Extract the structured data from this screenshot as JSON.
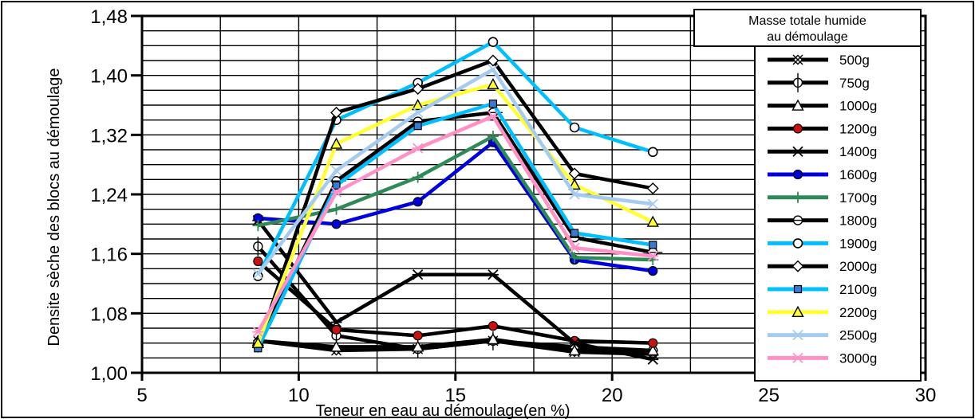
{
  "chart_data": {
    "type": "line",
    "xlabel": "Teneur en eau au démoulage(en %)",
    "ylabel": "Densite sèche des blocs au démoulage",
    "xlim": [
      5,
      30
    ],
    "ylim": [
      1.0,
      1.48
    ],
    "x_ticks": [
      5,
      10,
      15,
      20,
      25,
      30
    ],
    "y_ticks": [
      1.0,
      1.08,
      1.16,
      1.24,
      1.32,
      1.4,
      1.48
    ],
    "x_tick_labels": [
      "5",
      "10",
      "15",
      "20",
      "25",
      "30"
    ],
    "y_tick_labels": [
      "1,00",
      "1,08",
      "1,16",
      "1,24",
      "1,32",
      "1,40",
      "1,48"
    ],
    "grid": true,
    "legend_title": "Masse totale humide au démoulage",
    "legend_placement": "right",
    "series": [
      {
        "name": "500g",
        "color": "#000000",
        "marker": "diamond-x",
        "x": [
          8.7,
          11.2,
          13.8,
          16.2,
          18.8,
          21.3
        ],
        "y": [
          1.043,
          1.03,
          1.032,
          1.043,
          1.028,
          1.025
        ]
      },
      {
        "name": "750g",
        "color": "#000000",
        "marker": "circle-cross",
        "x": [
          8.7,
          11.2,
          13.8,
          16.2,
          18.8,
          21.3
        ],
        "y": [
          1.17,
          1.05,
          1.032,
          1.043,
          1.035,
          1.03
        ]
      },
      {
        "name": "1000g",
        "color": "#000000",
        "marker": "triangle",
        "x": [
          8.7,
          11.2,
          13.8,
          16.2,
          18.8,
          21.3
        ],
        "y": [
          1.043,
          1.035,
          1.035,
          1.045,
          1.03,
          1.03
        ]
      },
      {
        "name": "1200g",
        "color": "#000000",
        "marker": "circle-filled",
        "x": [
          8.7,
          11.2,
          13.8,
          16.2,
          18.8,
          21.3
        ],
        "y": [
          1.15,
          1.058,
          1.05,
          1.063,
          1.043,
          1.04
        ]
      },
      {
        "name": "1400g",
        "color": "#000000",
        "marker": "star",
        "x": [
          8.7,
          11.2,
          13.8,
          16.2,
          18.8,
          21.3
        ],
        "y": [
          1.205,
          1.068,
          1.132,
          1.132,
          1.04,
          1.018
        ]
      },
      {
        "name": "1600g",
        "color": "#0000dd",
        "marker": "circle-filled",
        "x": [
          8.7,
          11.2,
          13.8,
          16.2,
          18.8,
          21.3
        ],
        "y": [
          1.208,
          1.2,
          1.23,
          1.31,
          1.152,
          1.137
        ]
      },
      {
        "name": "1700g",
        "color": "#2e8b57",
        "marker": "plus",
        "x": [
          8.7,
          11.2,
          13.8,
          16.2,
          18.8,
          21.3
        ],
        "y": [
          1.198,
          1.22,
          1.263,
          1.318,
          1.155,
          1.152
        ]
      },
      {
        "name": "1800g",
        "color": "#000000",
        "marker": "circle-dash",
        "x": [
          8.7,
          11.2,
          13.8,
          16.2,
          18.8,
          21.3
        ],
        "y": [
          1.04,
          1.258,
          1.338,
          1.35,
          1.182,
          1.162
        ]
      },
      {
        "name": "1900g",
        "color": "#00bfff",
        "marker": "circle",
        "x": [
          8.7,
          11.2,
          13.8,
          16.2,
          18.8,
          21.3
        ],
        "y": [
          1.13,
          1.34,
          1.39,
          1.445,
          1.33,
          1.297
        ]
      },
      {
        "name": "2000g",
        "color": "#000000",
        "marker": "diamond",
        "x": [
          8.7,
          11.2,
          13.8,
          16.2,
          18.8,
          21.3
        ],
        "y": [
          1.035,
          1.35,
          1.382,
          1.42,
          1.268,
          1.248
        ]
      },
      {
        "name": "2100g",
        "color": "#00bfff",
        "marker": "square",
        "x": [
          8.7,
          11.2,
          13.8,
          16.2,
          18.8,
          21.3
        ],
        "y": [
          1.033,
          1.252,
          1.332,
          1.362,
          1.188,
          1.172
        ]
      },
      {
        "name": "2200g",
        "color": "#ffff33",
        "marker": "triangle",
        "x": [
          8.7,
          11.2,
          13.8,
          16.2,
          18.8,
          21.3
        ],
        "y": [
          1.04,
          1.308,
          1.36,
          1.388,
          1.253,
          1.203
        ]
      },
      {
        "name": "2500g",
        "color": "#a6cbf0",
        "marker": "x",
        "x": [
          8.7,
          11.2,
          13.8,
          16.2,
          18.8,
          21.3
        ],
        "y": [
          1.133,
          1.272,
          1.35,
          1.408,
          1.24,
          1.227
        ]
      },
      {
        "name": "3000g",
        "color": "#ff91c6",
        "marker": "star",
        "x": [
          8.7,
          11.2,
          13.8,
          16.2,
          18.8,
          21.3
        ],
        "y": [
          1.055,
          1.243,
          1.302,
          1.345,
          1.168,
          1.157
        ]
      }
    ]
  }
}
